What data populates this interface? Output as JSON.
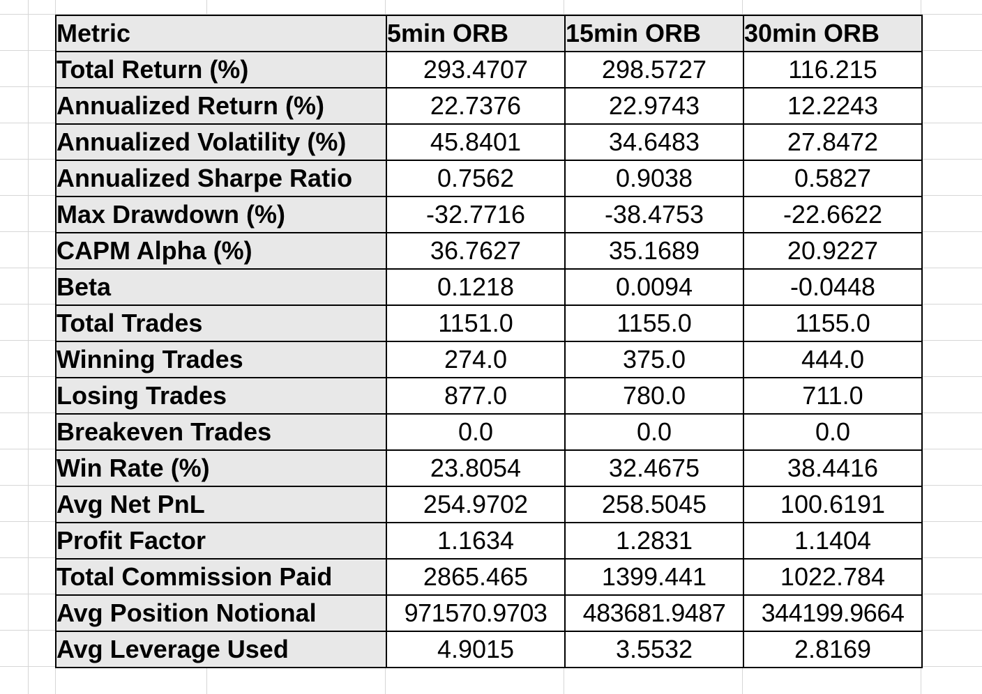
{
  "table": {
    "headers": [
      "Metric",
      "5min ORB",
      "15min ORB",
      "30min ORB"
    ],
    "rows": [
      {
        "metric": "Total Return (%)",
        "values": [
          "293.4707",
          "298.5727",
          "116.215"
        ]
      },
      {
        "metric": "Annualized Return (%)",
        "values": [
          "22.7376",
          "22.9743",
          "12.2243"
        ]
      },
      {
        "metric": "Annualized Volatility (%)",
        "values": [
          "45.8401",
          "34.6483",
          "27.8472"
        ]
      },
      {
        "metric": "Annualized Sharpe Ratio",
        "values": [
          "0.7562",
          "0.9038",
          "0.5827"
        ]
      },
      {
        "metric": "Max Drawdown (%)",
        "values": [
          "-32.7716",
          "-38.4753",
          "-22.6622"
        ]
      },
      {
        "metric": "CAPM Alpha (%)",
        "values": [
          "36.7627",
          "35.1689",
          "20.9227"
        ]
      },
      {
        "metric": "Beta",
        "values": [
          "0.1218",
          "0.0094",
          "-0.0448"
        ]
      },
      {
        "metric": "Total Trades",
        "values": [
          "1151.0",
          "1155.0",
          "1155.0"
        ]
      },
      {
        "metric": "Winning Trades",
        "values": [
          "274.0",
          "375.0",
          "444.0"
        ]
      },
      {
        "metric": "Losing Trades",
        "values": [
          "877.0",
          "780.0",
          "711.0"
        ]
      },
      {
        "metric": "Breakeven Trades",
        "values": [
          "0.0",
          "0.0",
          "0.0"
        ]
      },
      {
        "metric": "Win Rate (%)",
        "values": [
          "23.8054",
          "32.4675",
          "38.4416"
        ]
      },
      {
        "metric": "Avg Net PnL",
        "values": [
          "254.9702",
          "258.5045",
          "100.6191"
        ]
      },
      {
        "metric": "Profit Factor",
        "values": [
          "1.1634",
          "1.2831",
          "1.1404"
        ]
      },
      {
        "metric": "Total Commission Paid",
        "values": [
          "2865.465",
          "1399.441",
          "1022.784"
        ]
      },
      {
        "metric": "Avg Position Notional",
        "values": [
          "971570.9703",
          "483681.9487",
          "344199.9664"
        ]
      },
      {
        "metric": "Avg Leverage Used",
        "values": [
          "4.9015",
          "3.5532",
          "2.8169"
        ]
      }
    ]
  },
  "colors": {
    "header_fill": "#e8e8e8",
    "border": "#000000",
    "gridline": "#d6d6d6"
  }
}
